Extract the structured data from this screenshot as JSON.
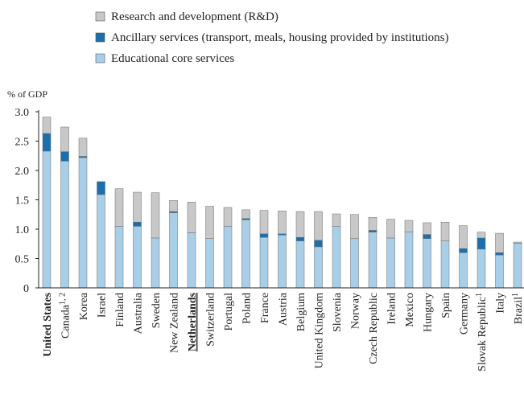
{
  "chart_data": {
    "type": "bar",
    "stacked": true,
    "ylabel": "% of GDP",
    "ylim": [
      0,
      3.0
    ],
    "yticks": [
      "0",
      "0.5",
      "1.0",
      "1.5",
      "2.0",
      "2.5",
      "3.0"
    ],
    "grid": false,
    "legend_position": "top-left",
    "categories": [
      "United States",
      "Canada",
      "Korea",
      "Israel",
      "Finland",
      "Australia",
      "Sweden",
      "New Zealand",
      "Netherlands",
      "Switzerland",
      "Portugal",
      "Poland",
      "France",
      "Austria",
      "Belgium",
      "United Kingdom",
      "Slovenia",
      "Norway",
      "Czech Republic",
      "Ireland",
      "Mexico",
      "Hungary",
      "Spain",
      "Germany",
      "Slovak Republic",
      "Italy",
      "Brazil"
    ],
    "category_notes": [
      "",
      "1, 2",
      "",
      "",
      "",
      "",
      "",
      "",
      "",
      "",
      "",
      "",
      "",
      "",
      "",
      "",
      "",
      "",
      "",
      "",
      "",
      "",
      "",
      "",
      "1",
      "",
      "1"
    ],
    "bold_categories": [
      "United States",
      "Netherlands"
    ],
    "underlined_categories": [
      "Netherlands"
    ],
    "series": [
      {
        "name": "Educational core services",
        "color": "#a9cfe8",
        "values": [
          2.33,
          2.16,
          2.22,
          1.59,
          1.05,
          1.05,
          0.85,
          1.28,
          0.94,
          0.84,
          1.05,
          1.16,
          0.86,
          0.9,
          0.8,
          0.7,
          1.05,
          0.84,
          0.95,
          0.85,
          0.95,
          0.84,
          0.8,
          0.6,
          0.66,
          0.56,
          0.76
        ]
      },
      {
        "name": "Ancillary services (transport, meals, housing provided by institutions)",
        "color": "#1b6fae",
        "values": [
          0.3,
          0.16,
          0.02,
          0.22,
          0.0,
          0.07,
          0.0,
          0.02,
          0.0,
          0.0,
          0.0,
          0.02,
          0.06,
          0.02,
          0.06,
          0.11,
          0.0,
          0.0,
          0.03,
          0.0,
          0.0,
          0.07,
          0.0,
          0.07,
          0.19,
          0.04,
          0.0
        ]
      },
      {
        "name": "Research and development (R&D)",
        "color": "#c8c8c8",
        "values": [
          0.28,
          0.42,
          0.31,
          0.0,
          0.64,
          0.51,
          0.77,
          0.19,
          0.52,
          0.55,
          0.32,
          0.15,
          0.4,
          0.39,
          0.44,
          0.49,
          0.21,
          0.41,
          0.22,
          0.32,
          0.2,
          0.2,
          0.32,
          0.39,
          0.1,
          0.33,
          0.02
        ]
      }
    ],
    "legend_order": [
      "Research and development (R&D)",
      "Ancillary services (transport, meals, housing provided by institutions)",
      "Educational core services"
    ]
  }
}
